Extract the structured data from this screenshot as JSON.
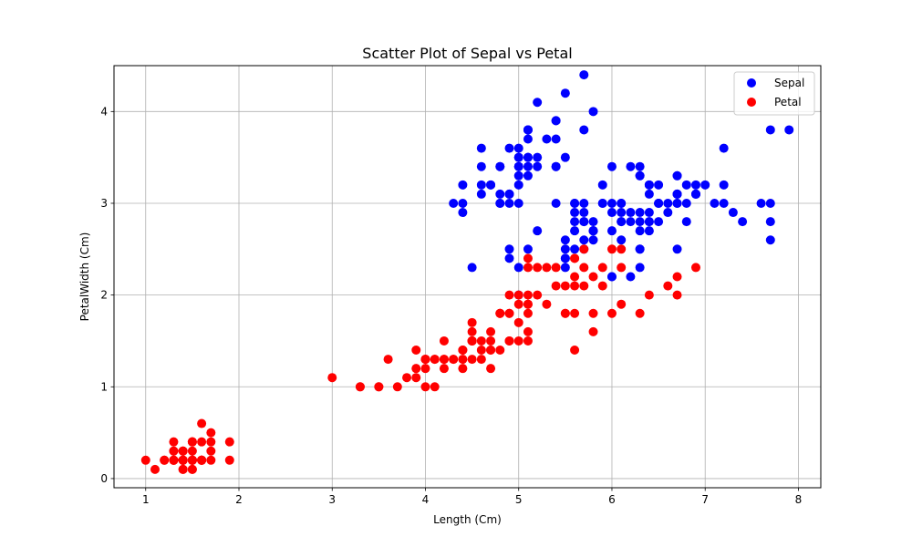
{
  "chart_data": {
    "type": "scatter",
    "title": "Scatter Plot of Sepal vs Petal",
    "xlabel": "Length (Cm)",
    "ylabel": "PetalWidth (Cm)",
    "xlim": [
      0.66,
      8.24
    ],
    "ylim": [
      -0.1,
      4.5
    ],
    "xticks": [
      1,
      2,
      3,
      4,
      5,
      6,
      7,
      8
    ],
    "yticks": [
      0,
      1,
      2,
      3,
      4
    ],
    "grid": true,
    "legend_position": "top-right",
    "series": [
      {
        "name": "Sepal",
        "color": "#0000ff",
        "points": [
          [
            5.1,
            3.5
          ],
          [
            4.9,
            3.0
          ],
          [
            4.7,
            3.2
          ],
          [
            4.6,
            3.1
          ],
          [
            5.0,
            3.6
          ],
          [
            5.4,
            3.9
          ],
          [
            4.6,
            3.4
          ],
          [
            5.0,
            3.4
          ],
          [
            4.4,
            2.9
          ],
          [
            4.9,
            3.1
          ],
          [
            5.4,
            3.7
          ],
          [
            4.8,
            3.4
          ],
          [
            4.8,
            3.0
          ],
          [
            4.3,
            3.0
          ],
          [
            5.8,
            4.0
          ],
          [
            5.7,
            4.4
          ],
          [
            5.4,
            3.9
          ],
          [
            5.1,
            3.5
          ],
          [
            5.7,
            3.8
          ],
          [
            5.1,
            3.8
          ],
          [
            5.4,
            3.4
          ],
          [
            5.1,
            3.7
          ],
          [
            4.6,
            3.6
          ],
          [
            5.1,
            3.3
          ],
          [
            4.8,
            3.4
          ],
          [
            5.0,
            3.0
          ],
          [
            5.0,
            3.4
          ],
          [
            5.2,
            3.5
          ],
          [
            5.2,
            3.4
          ],
          [
            4.7,
            3.2
          ],
          [
            4.8,
            3.1
          ],
          [
            5.4,
            3.4
          ],
          [
            5.2,
            4.1
          ],
          [
            5.5,
            4.2
          ],
          [
            4.9,
            3.1
          ],
          [
            5.0,
            3.2
          ],
          [
            5.5,
            3.5
          ],
          [
            4.9,
            3.6
          ],
          [
            4.4,
            3.0
          ],
          [
            5.1,
            3.4
          ],
          [
            5.0,
            3.5
          ],
          [
            4.5,
            2.3
          ],
          [
            4.4,
            3.2
          ],
          [
            5.0,
            3.5
          ],
          [
            5.1,
            3.8
          ],
          [
            4.8,
            3.0
          ],
          [
            5.1,
            3.8
          ],
          [
            4.6,
            3.2
          ],
          [
            5.3,
            3.7
          ],
          [
            5.0,
            3.3
          ],
          [
            7.0,
            3.2
          ],
          [
            6.4,
            3.2
          ],
          [
            6.9,
            3.1
          ],
          [
            5.5,
            2.3
          ],
          [
            6.5,
            2.8
          ],
          [
            5.7,
            2.8
          ],
          [
            6.3,
            3.3
          ],
          [
            4.9,
            2.4
          ],
          [
            6.6,
            2.9
          ],
          [
            5.2,
            2.7
          ],
          [
            5.0,
            2.0
          ],
          [
            5.9,
            3.0
          ],
          [
            6.0,
            2.2
          ],
          [
            6.1,
            2.9
          ],
          [
            5.6,
            2.9
          ],
          [
            6.7,
            3.1
          ],
          [
            5.6,
            3.0
          ],
          [
            5.8,
            2.7
          ],
          [
            6.2,
            2.2
          ],
          [
            5.6,
            2.5
          ],
          [
            5.9,
            3.2
          ],
          [
            6.1,
            2.8
          ],
          [
            6.3,
            2.5
          ],
          [
            6.1,
            2.8
          ],
          [
            6.4,
            2.9
          ],
          [
            6.6,
            3.0
          ],
          [
            6.8,
            2.8
          ],
          [
            6.7,
            3.0
          ],
          [
            6.0,
            2.9
          ],
          [
            5.7,
            2.6
          ],
          [
            5.5,
            2.4
          ],
          [
            5.5,
            2.4
          ],
          [
            5.8,
            2.7
          ],
          [
            6.0,
            2.7
          ],
          [
            5.4,
            3.0
          ],
          [
            6.0,
            3.4
          ],
          [
            6.7,
            3.1
          ],
          [
            6.3,
            2.3
          ],
          [
            5.6,
            3.0
          ],
          [
            5.5,
            2.5
          ],
          [
            5.5,
            2.6
          ],
          [
            6.1,
            3.0
          ],
          [
            5.8,
            2.6
          ],
          [
            5.0,
            2.3
          ],
          [
            5.6,
            2.7
          ],
          [
            5.7,
            3.0
          ],
          [
            5.7,
            2.9
          ],
          [
            6.2,
            2.9
          ],
          [
            5.1,
            2.5
          ],
          [
            5.7,
            2.8
          ],
          [
            6.3,
            3.3
          ],
          [
            5.8,
            2.7
          ],
          [
            7.1,
            3.0
          ],
          [
            6.3,
            2.9
          ],
          [
            6.5,
            3.0
          ],
          [
            7.6,
            3.0
          ],
          [
            4.9,
            2.5
          ],
          [
            7.3,
            2.9
          ],
          [
            6.7,
            2.5
          ],
          [
            7.2,
            3.6
          ],
          [
            6.5,
            3.2
          ],
          [
            6.4,
            2.7
          ],
          [
            6.8,
            3.0
          ],
          [
            5.7,
            2.5
          ],
          [
            5.8,
            2.8
          ],
          [
            6.4,
            3.2
          ],
          [
            6.5,
            3.0
          ],
          [
            7.7,
            3.8
          ],
          [
            7.7,
            2.6
          ],
          [
            6.0,
            2.2
          ],
          [
            6.9,
            3.2
          ],
          [
            5.6,
            2.8
          ],
          [
            7.7,
            2.8
          ],
          [
            6.3,
            2.7
          ],
          [
            6.7,
            3.3
          ],
          [
            7.2,
            3.2
          ],
          [
            6.2,
            2.8
          ],
          [
            6.1,
            3.0
          ],
          [
            6.4,
            2.8
          ],
          [
            7.2,
            3.0
          ],
          [
            7.4,
            2.8
          ],
          [
            7.9,
            3.8
          ],
          [
            6.4,
            2.8
          ],
          [
            6.3,
            2.8
          ],
          [
            6.1,
            2.6
          ],
          [
            7.7,
            3.0
          ],
          [
            6.3,
            3.4
          ],
          [
            6.4,
            3.1
          ],
          [
            6.0,
            3.0
          ],
          [
            6.9,
            3.1
          ],
          [
            6.7,
            3.1
          ],
          [
            6.9,
            3.1
          ],
          [
            5.8,
            2.7
          ],
          [
            6.8,
            3.2
          ],
          [
            6.7,
            3.3
          ],
          [
            6.7,
            3.0
          ],
          [
            6.3,
            2.5
          ],
          [
            6.5,
            3.0
          ],
          [
            6.2,
            3.4
          ],
          [
            5.9,
            3.0
          ]
        ]
      },
      {
        "name": "Petal",
        "color": "#ff0000",
        "points": [
          [
            1.4,
            0.2
          ],
          [
            1.4,
            0.2
          ],
          [
            1.3,
            0.2
          ],
          [
            1.5,
            0.2
          ],
          [
            1.4,
            0.2
          ],
          [
            1.7,
            0.4
          ],
          [
            1.4,
            0.3
          ],
          [
            1.5,
            0.2
          ],
          [
            1.4,
            0.2
          ],
          [
            1.5,
            0.1
          ],
          [
            1.5,
            0.2
          ],
          [
            1.6,
            0.2
          ],
          [
            1.4,
            0.1
          ],
          [
            1.1,
            0.1
          ],
          [
            1.2,
            0.2
          ],
          [
            1.5,
            0.4
          ],
          [
            1.3,
            0.4
          ],
          [
            1.4,
            0.3
          ],
          [
            1.7,
            0.3
          ],
          [
            1.5,
            0.3
          ],
          [
            1.7,
            0.2
          ],
          [
            1.5,
            0.4
          ],
          [
            1.0,
            0.2
          ],
          [
            1.7,
            0.5
          ],
          [
            1.9,
            0.2
          ],
          [
            1.6,
            0.2
          ],
          [
            1.6,
            0.4
          ],
          [
            1.5,
            0.2
          ],
          [
            1.4,
            0.2
          ],
          [
            1.6,
            0.2
          ],
          [
            1.6,
            0.2
          ],
          [
            1.5,
            0.4
          ],
          [
            1.5,
            0.1
          ],
          [
            1.4,
            0.2
          ],
          [
            1.5,
            0.2
          ],
          [
            1.2,
            0.2
          ],
          [
            1.3,
            0.2
          ],
          [
            1.4,
            0.1
          ],
          [
            1.3,
            0.2
          ],
          [
            1.5,
            0.2
          ],
          [
            1.3,
            0.3
          ],
          [
            1.3,
            0.3
          ],
          [
            1.3,
            0.2
          ],
          [
            1.6,
            0.6
          ],
          [
            1.9,
            0.4
          ],
          [
            1.4,
            0.3
          ],
          [
            1.6,
            0.2
          ],
          [
            1.4,
            0.2
          ],
          [
            1.5,
            0.2
          ],
          [
            1.4,
            0.2
          ],
          [
            4.7,
            1.4
          ],
          [
            4.5,
            1.5
          ],
          [
            4.9,
            1.5
          ],
          [
            4.0,
            1.3
          ],
          [
            4.6,
            1.5
          ],
          [
            4.5,
            1.3
          ],
          [
            4.7,
            1.6
          ],
          [
            3.3,
            1.0
          ],
          [
            4.6,
            1.3
          ],
          [
            3.9,
            1.4
          ],
          [
            3.5,
            1.0
          ],
          [
            4.2,
            1.5
          ],
          [
            4.0,
            1.0
          ],
          [
            4.7,
            1.4
          ],
          [
            3.6,
            1.3
          ],
          [
            4.4,
            1.4
          ],
          [
            4.5,
            1.5
          ],
          [
            4.1,
            1.0
          ],
          [
            4.5,
            1.5
          ],
          [
            3.9,
            1.1
          ],
          [
            4.8,
            1.8
          ],
          [
            4.0,
            1.3
          ],
          [
            4.9,
            1.5
          ],
          [
            4.7,
            1.2
          ],
          [
            4.3,
            1.3
          ],
          [
            4.4,
            1.4
          ],
          [
            4.8,
            1.4
          ],
          [
            5.0,
            1.7
          ],
          [
            4.5,
            1.5
          ],
          [
            3.5,
            1.0
          ],
          [
            3.8,
            1.1
          ],
          [
            3.7,
            1.0
          ],
          [
            3.9,
            1.2
          ],
          [
            5.1,
            1.6
          ],
          [
            4.5,
            1.5
          ],
          [
            4.5,
            1.6
          ],
          [
            4.7,
            1.5
          ],
          [
            4.4,
            1.3
          ],
          [
            4.1,
            1.3
          ],
          [
            4.0,
            1.3
          ],
          [
            4.4,
            1.2
          ],
          [
            4.6,
            1.4
          ],
          [
            4.0,
            1.2
          ],
          [
            3.3,
            1.0
          ],
          [
            4.2,
            1.3
          ],
          [
            4.2,
            1.2
          ],
          [
            4.2,
            1.3
          ],
          [
            4.3,
            1.3
          ],
          [
            3.0,
            1.1
          ],
          [
            4.1,
            1.3
          ],
          [
            6.0,
            2.5
          ],
          [
            5.1,
            1.9
          ],
          [
            5.9,
            2.1
          ],
          [
            5.6,
            1.8
          ],
          [
            5.8,
            2.2
          ],
          [
            6.6,
            2.1
          ],
          [
            4.5,
            1.7
          ],
          [
            6.3,
            1.8
          ],
          [
            5.8,
            1.8
          ],
          [
            6.1,
            2.5
          ],
          [
            5.1,
            2.0
          ],
          [
            5.3,
            1.9
          ],
          [
            5.5,
            2.1
          ],
          [
            5.0,
            2.0
          ],
          [
            5.1,
            2.4
          ],
          [
            5.3,
            2.3
          ],
          [
            5.5,
            1.8
          ],
          [
            6.7,
            2.2
          ],
          [
            6.9,
            2.3
          ],
          [
            5.0,
            1.5
          ],
          [
            5.7,
            2.3
          ],
          [
            4.9,
            2.0
          ],
          [
            6.7,
            2.0
          ],
          [
            4.9,
            1.8
          ],
          [
            5.7,
            2.1
          ],
          [
            6.0,
            1.8
          ],
          [
            4.8,
            1.8
          ],
          [
            4.9,
            1.8
          ],
          [
            5.6,
            2.1
          ],
          [
            5.8,
            1.6
          ],
          [
            6.1,
            1.9
          ],
          [
            6.4,
            2.0
          ],
          [
            5.6,
            2.2
          ],
          [
            5.1,
            1.5
          ],
          [
            5.6,
            1.4
          ],
          [
            6.1,
            2.3
          ],
          [
            5.6,
            2.4
          ],
          [
            5.5,
            1.8
          ],
          [
            4.8,
            1.8
          ],
          [
            5.4,
            2.1
          ],
          [
            5.6,
            2.4
          ],
          [
            5.1,
            2.3
          ],
          [
            5.1,
            1.9
          ],
          [
            5.9,
            2.3
          ],
          [
            5.7,
            2.5
          ],
          [
            5.2,
            2.3
          ],
          [
            5.0,
            1.9
          ],
          [
            5.2,
            2.0
          ],
          [
            5.4,
            2.3
          ],
          [
            5.1,
            1.8
          ]
        ]
      }
    ]
  }
}
